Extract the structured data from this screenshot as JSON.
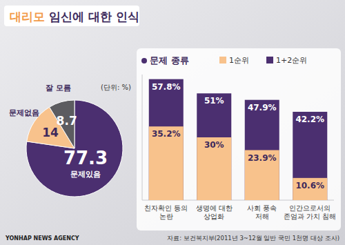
{
  "title": "대리모 임신에 대한 인식",
  "source": "자료: 보건복지부(2011년 3~12월 일반 국민 1천명 대상 조사)",
  "agency": "YONHAP NEWS AGENCY",
  "chart_data": [
    {
      "type": "pie",
      "subtitle": "(단위: %)",
      "categories": [
        "문제있음",
        "문제없음",
        "잘 모름"
      ],
      "values": [
        77.3,
        14,
        8.7
      ],
      "colors": [
        "#4b2f70",
        "#f8c28c",
        "#5c5c60"
      ],
      "data_labels": true
    },
    {
      "type": "bar",
      "title": "문제 종류",
      "categories": [
        "친자확인 등의\n논란",
        "생명에 대한\n상업화",
        "사회 풍속\n저해",
        "인간으로서의\n존엄과 가치 침해"
      ],
      "series": [
        {
          "name": "1순위",
          "color": "#f8c28c",
          "values": [
            35.2,
            30,
            23.9,
            10.6
          ],
          "value_labels": [
            "35.2%",
            "30%",
            "23.9%",
            "10.6%"
          ]
        },
        {
          "name": "1+2순위",
          "color": "#4b2f70",
          "values": [
            57.8,
            51,
            47.9,
            42.2
          ],
          "value_labels": [
            "57.8%",
            "51%",
            "47.9%",
            "42.2%"
          ]
        }
      ],
      "ylim": [
        0,
        60
      ],
      "yticks": [],
      "tick_labels": false,
      "stacked": false,
      "data_labels": true,
      "legend": "top-right"
    }
  ]
}
